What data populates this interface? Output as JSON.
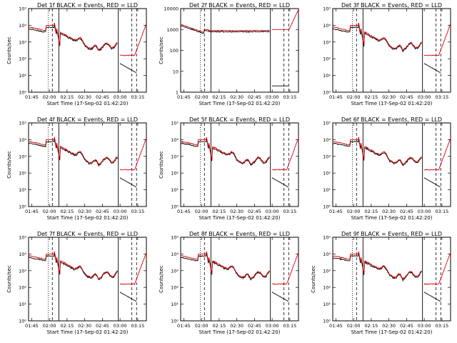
{
  "window": {
    "title": ""
  },
  "colors": {
    "events": "#000000",
    "lld": "#e00000",
    "axes": "#000000"
  },
  "chart_data": [
    {
      "type": "line",
      "title": "Det 1f BLACK = Events, RED = LLD",
      "xlabel": "Start Time (17-Sep-02 01:42:20)",
      "ylabel": "Counts/sec",
      "log_y": true,
      "ylim": [
        1,
        100000
      ],
      "yticks": [
        "10⁰",
        "10¹",
        "10²",
        "10³",
        "10⁴",
        "10⁵"
      ],
      "x_tick_labels": [
        "01:45",
        "02:00",
        "02:15",
        "02:30",
        "02:45",
        "03:00",
        "03:15"
      ],
      "profile": "typ"
    },
    {
      "type": "line",
      "title": "Det 2f BLACK = Events, RED = LLD",
      "xlabel": "Start Time (17-Sep-02 01:42:20)",
      "ylabel": "Counts/sec",
      "log_y": true,
      "ylim": [
        1,
        10000
      ],
      "yticks": [
        "1",
        "10",
        "100",
        "1000",
        "10000"
      ],
      "x_tick_labels": [
        "01:45",
        "02:00",
        "02:15",
        "02:30",
        "02:45",
        "03:00",
        "03:15"
      ],
      "profile": "flat"
    },
    {
      "type": "line",
      "title": "Det 3f BLACK = Events, RED = LLD",
      "xlabel": "Start Time (17-Sep-02 01:42:20)",
      "ylabel": "",
      "log_y": true,
      "ylim": [
        1,
        100000
      ],
      "yticks": [
        "10⁰",
        "10¹",
        "10²",
        "10³",
        "10⁴",
        "10⁵"
      ],
      "x_tick_labels": [
        "01:45",
        "02:00",
        "02:15",
        "02:30",
        "02:45",
        "03:00",
        "03:15"
      ],
      "profile": "typ"
    },
    {
      "type": "line",
      "title": "Det 4f BLACK = Events, RED = LLD",
      "xlabel": "Start Time (17-Sep-02 01:42:20)",
      "ylabel": "Counts/sec",
      "log_y": true,
      "ylim": [
        1,
        100000
      ],
      "yticks": [
        "10⁰",
        "10¹",
        "10²",
        "10³",
        "10⁴",
        "10⁵"
      ],
      "x_tick_labels": [
        "01:45",
        "02:00",
        "02:15",
        "02:30",
        "02:45",
        "03:00",
        "03:15"
      ],
      "profile": "typ"
    },
    {
      "type": "line",
      "title": "Det 5f BLACK = Events, RED = LLD",
      "xlabel": "Start Time (17-Sep-02 01:42:20)",
      "ylabel": "Counts/sec",
      "log_y": true,
      "ylim": [
        1,
        100000
      ],
      "yticks": [
        "10⁰",
        "10¹",
        "10²",
        "10³",
        "10⁴",
        "10⁵"
      ],
      "x_tick_labels": [
        "01:45",
        "02:00",
        "02:15",
        "02:30",
        "02:45",
        "03:00",
        "03:15"
      ],
      "profile": "typ"
    },
    {
      "type": "line",
      "title": "Det 6f BLACK = Events, RED = LLD",
      "xlabel": "Start Time (17-Sep-02 01:42:20)",
      "ylabel": "",
      "log_y": true,
      "ylim": [
        1,
        100000
      ],
      "yticks": [
        "10⁰",
        "10¹",
        "10²",
        "10³",
        "10⁴",
        "10⁵"
      ],
      "x_tick_labels": [
        "01:45",
        "02:00",
        "02:15",
        "02:30",
        "02:45",
        "03:00",
        "03:15"
      ],
      "profile": "typ"
    },
    {
      "type": "line",
      "title": "Det 7f BLACK = Events, RED = LLD",
      "xlabel": "Start Time (17-Sep-02 01:42:20)",
      "ylabel": "Counts/sec",
      "log_y": true,
      "ylim": [
        1,
        100000
      ],
      "yticks": [
        "10⁰",
        "10¹",
        "10²",
        "10³",
        "10⁴",
        "10⁵"
      ],
      "x_tick_labels": [
        "01:45",
        "02:00",
        "02:15",
        "02:30",
        "02:45",
        "03:00",
        "03:15"
      ],
      "profile": "typ"
    },
    {
      "type": "line",
      "title": "Det 8f BLACK = Events, RED = LLD",
      "xlabel": "Start Time (17-Sep-02 01:42:20)",
      "ylabel": "Counts/sec",
      "log_y": true,
      "ylim": [
        1,
        100000
      ],
      "yticks": [
        "10⁰",
        "10¹",
        "10²",
        "10³",
        "10⁴",
        "10⁵"
      ],
      "x_tick_labels": [
        "01:45",
        "02:00",
        "02:15",
        "02:30",
        "02:45",
        "03:00",
        "03:15"
      ],
      "profile": "typ"
    },
    {
      "type": "line",
      "title": "Det 9f BLACK = Events, RED = LLD",
      "xlabel": "Start Time (17-Sep-02 01:42:20)",
      "ylabel": "Counts/sec",
      "log_y": true,
      "ylim": [
        1,
        100000
      ],
      "yticks": [
        "10⁰",
        "10¹",
        "10²",
        "10³",
        "10⁴",
        "10⁵"
      ],
      "x_tick_labels": [
        "01:45",
        "02:00",
        "02:15",
        "02:30",
        "02:45",
        "03:00",
        "03:15"
      ],
      "profile": "typ"
    }
  ]
}
